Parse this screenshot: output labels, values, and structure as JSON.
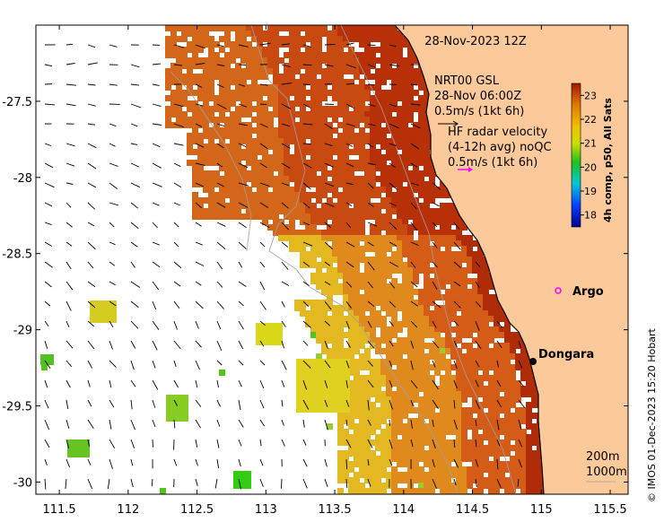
{
  "title": "28-Nov-2023 12Z",
  "axes": {
    "x_ticks": [
      "111.5",
      "112",
      "112.5",
      "113",
      "113.5",
      "114",
      "114.5",
      "115",
      "115.5"
    ],
    "y_ticks": [
      "-27.5",
      "-28",
      "-28.5",
      "-29",
      "-29.5",
      "-30"
    ],
    "xlim": [
      111.33,
      115.63
    ],
    "ylim": [
      -30.08,
      -27.0
    ]
  },
  "legend": {
    "gsl_line1": "NRT00 GSL",
    "gsl_line2": "28-Nov 06:00Z",
    "gsl_line3": "0.5m/s (1kt 6h)",
    "hf_line1": "HF radar velocity",
    "hf_line2": "(4-12h avg) noQC",
    "hf_line3": "0.5m/s (1kt 6h)"
  },
  "colorbar": {
    "ticks": [
      "23",
      "22",
      "21",
      "20",
      "19",
      "18"
    ],
    "label": "4h comp, p50, All Sats",
    "range": [
      17.5,
      23.5
    ]
  },
  "places": [
    {
      "name": "Argo",
      "lon": 115.07,
      "lat": -28.83,
      "marker": "magenta-circle"
    },
    {
      "name": "Dongara",
      "lon": 114.93,
      "lat": -29.25,
      "marker": "black-dot"
    }
  ],
  "isobaths": {
    "line1": "200m",
    "line2": "1000m"
  },
  "credit": "© IMOS 01-Dec-2023 15:20 Hobart",
  "colors": {
    "land": "#fcc99b",
    "coast": "#000000",
    "argo": "#ff00ff",
    "hf_arrow": "#ff00ff",
    "isobath": "#a0a0a0"
  }
}
